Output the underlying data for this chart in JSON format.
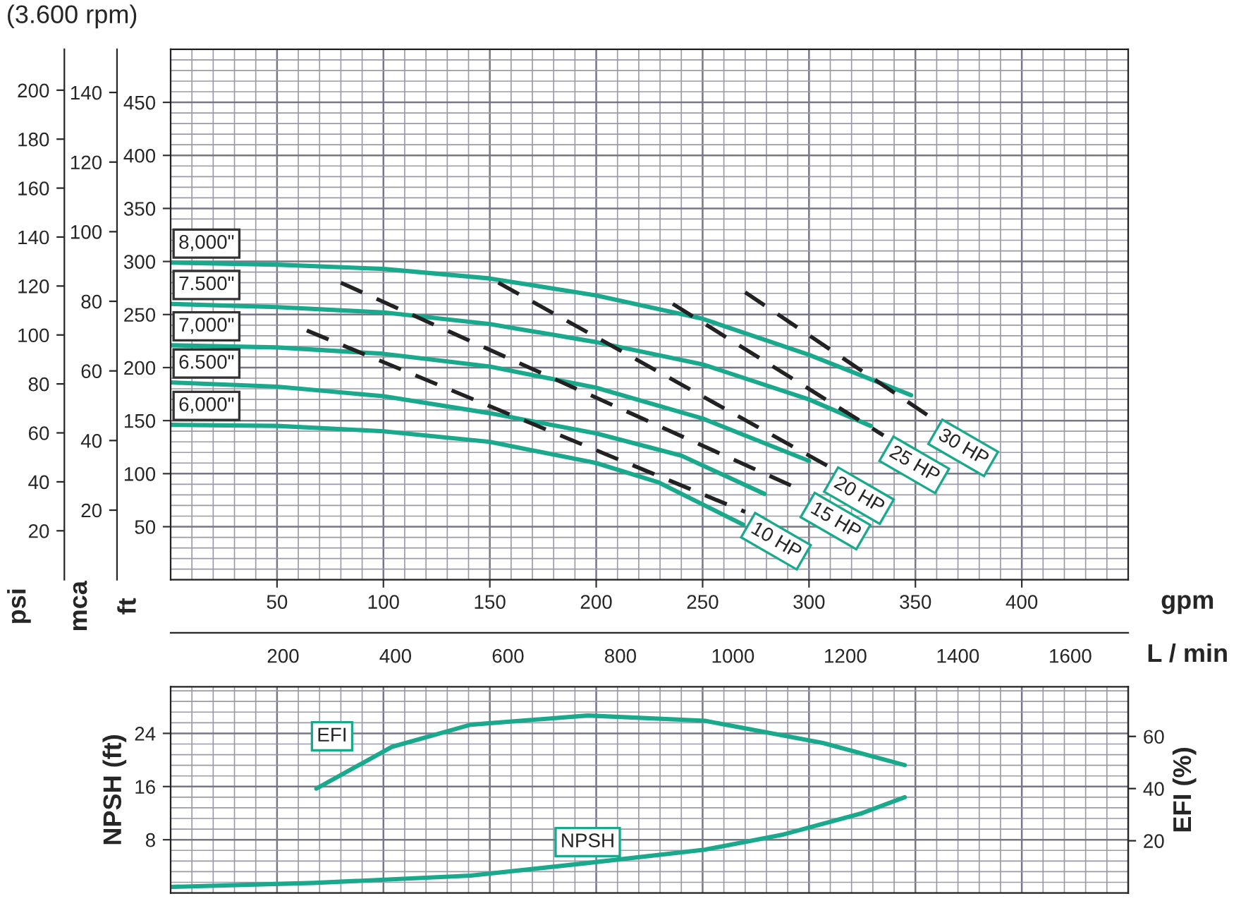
{
  "chart_data": [
    {
      "type": "line",
      "title": "(3.600 rpm)",
      "xlabel": "gpm",
      "x2label": "L / min",
      "ylabel": "ft",
      "y2label": "mca",
      "y3label": "psi",
      "xlim": [
        0,
        450
      ],
      "xticks": [
        50,
        100,
        150,
        200,
        250,
        300,
        350,
        400
      ],
      "x2lim": [
        0,
        1703
      ],
      "x2ticks": [
        200,
        400,
        600,
        800,
        1000,
        1200,
        1400,
        1600
      ],
      "ylim": [
        0,
        500
      ],
      "yticks": [
        50,
        100,
        150,
        200,
        250,
        300,
        350,
        400,
        450
      ],
      "y2lim": [
        0,
        152.4
      ],
      "y2ticks": [
        20,
        40,
        60,
        80,
        100,
        120,
        140
      ],
      "y3lim": [
        0,
        216.7
      ],
      "y3ticks": [
        20,
        40,
        60,
        80,
        100,
        120,
        140,
        160,
        180,
        200
      ],
      "grid": true,
      "series": [
        {
          "name": "8,000\"",
          "color": "#1aa98c",
          "line_style": "solid",
          "x": [
            0,
            50,
            100,
            150,
            200,
            250,
            300,
            348
          ],
          "values": [
            299,
            297,
            293,
            284,
            268,
            246,
            212,
            174
          ]
        },
        {
          "name": "7.500\"",
          "color": "#1aa98c",
          "line_style": "solid",
          "x": [
            0,
            50,
            100,
            150,
            200,
            250,
            300,
            329
          ],
          "values": [
            260,
            257,
            252,
            241,
            224,
            203,
            170,
            145
          ]
        },
        {
          "name": "7,000\"",
          "color": "#1aa98c",
          "line_style": "solid",
          "x": [
            0,
            50,
            100,
            150,
            200,
            250,
            300
          ],
          "values": [
            221,
            219,
            213,
            201,
            181,
            152,
            112
          ]
        },
        {
          "name": "6.500\"",
          "color": "#1aa98c",
          "line_style": "solid",
          "x": [
            0,
            50,
            100,
            150,
            200,
            240,
            279
          ],
          "values": [
            186,
            182,
            173,
            157,
            138,
            117,
            81
          ]
        },
        {
          "name": "6,000\"",
          "color": "#1aa98c",
          "line_style": "solid",
          "x": [
            0,
            50,
            100,
            150,
            200,
            229,
            269
          ],
          "values": [
            146,
            145,
            140,
            130,
            110,
            92,
            52
          ]
        },
        {
          "name": "10 HP",
          "color": "#222222",
          "line_style": "dashed",
          "x": [
            64,
            270
          ],
          "values": [
            235,
            64
          ]
        },
        {
          "name": "15 HP",
          "color": "#222222",
          "line_style": "dashed",
          "x": [
            80,
            298
          ],
          "values": [
            280,
            83
          ]
        },
        {
          "name": "20 HP",
          "color": "#222222",
          "line_style": "dashed",
          "x": [
            154,
            309
          ],
          "values": [
            280,
            107
          ]
        },
        {
          "name": "25 HP",
          "color": "#222222",
          "line_style": "dashed",
          "x": [
            236,
            335
          ],
          "values": [
            260,
            136
          ]
        },
        {
          "name": "30 HP",
          "color": "#222222",
          "line_style": "dashed",
          "x": [
            270,
            358
          ],
          "values": [
            271,
            152
          ]
        }
      ]
    },
    {
      "type": "line",
      "ylabel": "NPSH (ft)",
      "y2label": "EFI (%)",
      "tick_labels": "y",
      "xlim": [
        0,
        450
      ],
      "xticks": [
        50,
        100,
        150,
        200,
        250,
        300,
        350,
        400
      ],
      "ylim": [
        0,
        31
      ],
      "yticks": [
        8,
        16,
        24
      ],
      "y2lim": [
        0,
        79
      ],
      "y2ticks": [
        20,
        40,
        60
      ],
      "grid": true,
      "series": [
        {
          "name": "EFI",
          "color": "#1aa98c",
          "axis": "y2",
          "x": [
            68.5,
            104,
            141,
            196,
            251,
            306.5,
            345
          ],
          "values": [
            40,
            56,
            64.5,
            68,
            66,
            57.5,
            49
          ]
        },
        {
          "name": "NPSH",
          "color": "#1aa98c",
          "x": [
            0,
            67,
            141,
            196,
            251,
            288,
            325,
            345
          ],
          "values": [
            0.9,
            1.5,
            2.6,
            4.5,
            6.5,
            8.8,
            12,
            14.4
          ]
        }
      ]
    }
  ]
}
